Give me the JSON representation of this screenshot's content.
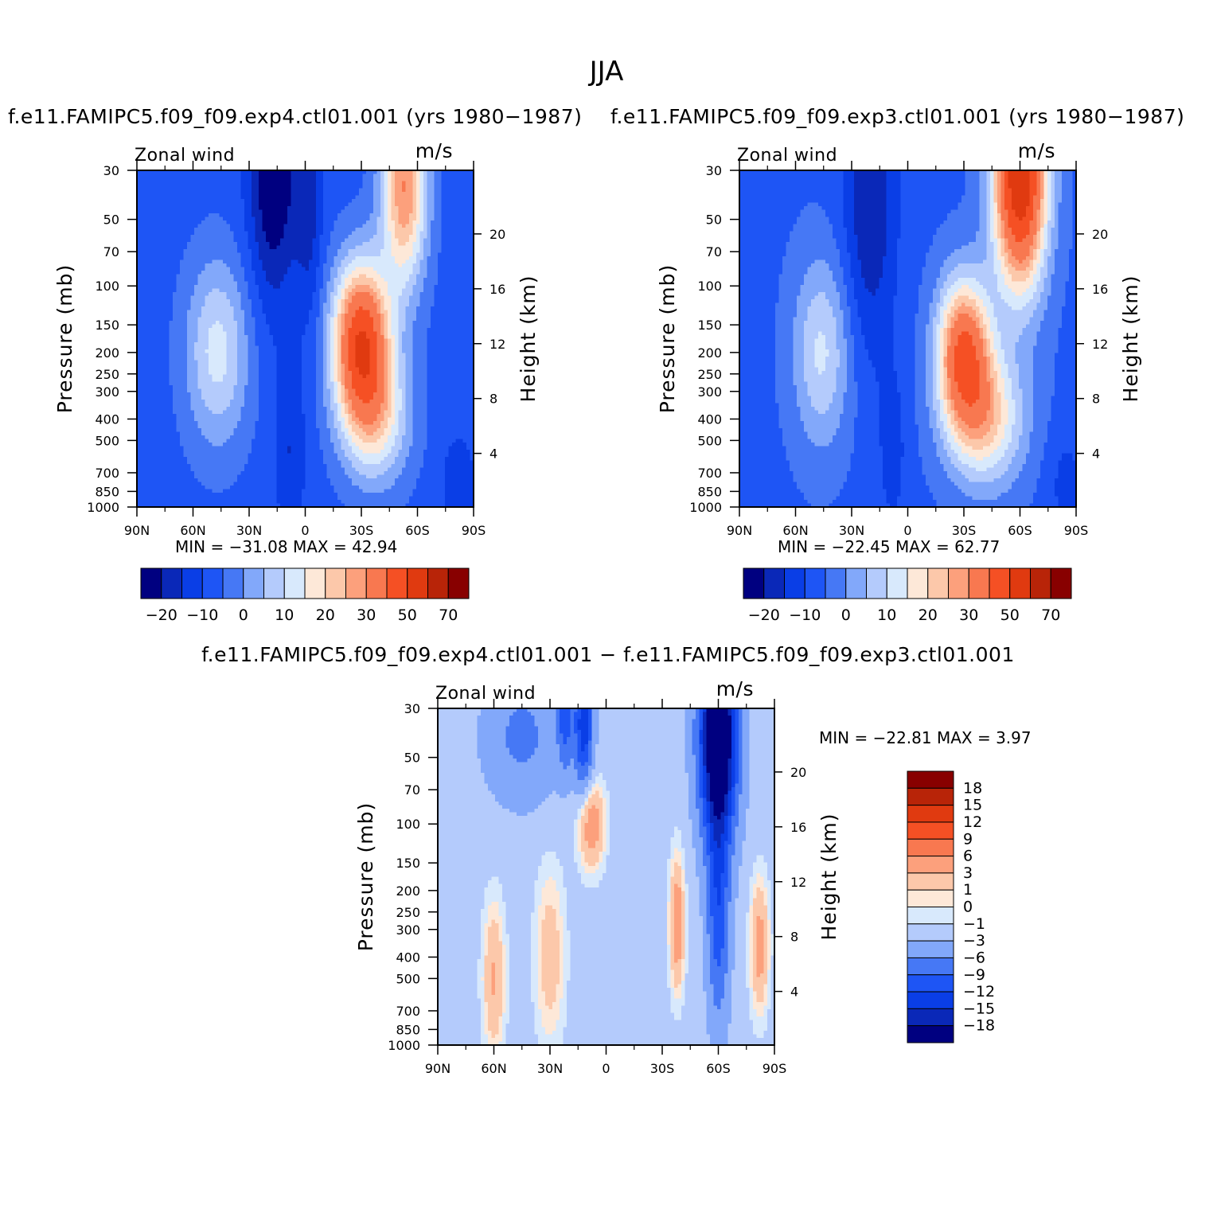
{
  "page_title": "JJA",
  "chart_data": [
    {
      "type": "heatmap",
      "title": "f.e11.FAMIPC5.f09_f09.exp4.ctl01.001 (yrs 1980−1987)",
      "left_label": "Zonal wind",
      "right_label": "m/s",
      "ylabel": "Pressure (mb)",
      "y2label": "Height (km)",
      "xlim": [
        90,
        -90
      ],
      "x_ticks": [
        "90N",
        "60N",
        "30N",
        "0",
        "30S",
        "60S",
        "90S"
      ],
      "x_tick_values": [
        90,
        60,
        30,
        0,
        -30,
        -60,
        -90
      ],
      "y_scale": "log",
      "ylim": [
        1000,
        30
      ],
      "y_ticks": [
        30,
        50,
        70,
        100,
        150,
        200,
        250,
        300,
        400,
        500,
        700,
        850,
        1000
      ],
      "y2_ticks": [
        4,
        8,
        12,
        16,
        20
      ],
      "stats_text": "MIN = −31.08   MAX =   42.94",
      "colorbar": {
        "orientation": "horizontal",
        "levels": [
          -25,
          -20,
          -15,
          -10,
          -5,
          0,
          5,
          10,
          15,
          20,
          25,
          30,
          40,
          50,
          60,
          70,
          80
        ],
        "tick_labels": [
          "−20",
          "−10",
          "0",
          "10",
          "20",
          "30",
          "50",
          "70"
        ],
        "colors": [
          "#000080",
          "#0a28b8",
          "#0a3ee6",
          "#1e55f5",
          "#4678f5",
          "#82a8fa",
          "#b4cbfc",
          "#d8e9fc",
          "#fde8d8",
          "#fcc8aa",
          "#fca07c",
          "#f87850",
          "#f55024",
          "#e03a10",
          "#b82408",
          "#880000"
        ]
      },
      "features": [
        {
          "lat": 17,
          "p": 40,
          "value": -28
        },
        {
          "lat": -2,
          "p": 40,
          "value": -15
        },
        {
          "lat": 45,
          "p": 200,
          "value": 18
        },
        {
          "lat": -30,
          "p": 200,
          "value": 42
        },
        {
          "lat": -53,
          "p": 40,
          "value": 30
        }
      ]
    },
    {
      "type": "heatmap",
      "title": "f.e11.FAMIPC5.f09_f09.exp3.ctl01.001 (yrs 1980−1987)",
      "left_label": "Zonal wind",
      "right_label": "m/s",
      "ylabel": "Pressure (mb)",
      "y2label": "Height (km)",
      "xlim": [
        90,
        -90
      ],
      "x_ticks": [
        "90N",
        "60N",
        "30N",
        "0",
        "30S",
        "60S",
        "90S"
      ],
      "x_tick_values": [
        90,
        60,
        30,
        0,
        -30,
        -60,
        -90
      ],
      "y_scale": "log",
      "ylim": [
        1000,
        30
      ],
      "y_ticks": [
        30,
        50,
        70,
        100,
        150,
        200,
        250,
        300,
        400,
        500,
        700,
        850,
        1000
      ],
      "y2_ticks": [
        4,
        8,
        12,
        16,
        20
      ],
      "stats_text": "MIN = −22.45   MAX =   62.77",
      "colorbar": {
        "orientation": "horizontal",
        "levels": [
          -25,
          -20,
          -15,
          -10,
          -5,
          0,
          5,
          10,
          15,
          20,
          25,
          30,
          40,
          50,
          60,
          70,
          80
        ],
        "tick_labels": [
          "−20",
          "−10",
          "0",
          "10",
          "20",
          "30",
          "50",
          "70"
        ],
        "colors": [
          "#000080",
          "#0a28b8",
          "#0a3ee6",
          "#1e55f5",
          "#4678f5",
          "#82a8fa",
          "#b4cbfc",
          "#d8e9fc",
          "#fde8d8",
          "#fcc8aa",
          "#fca07c",
          "#f87850",
          "#f55024",
          "#e03a10",
          "#b82408",
          "#880000"
        ]
      },
      "features": [
        {
          "lat": 20,
          "p": 40,
          "value": -20
        },
        {
          "lat": 45,
          "p": 200,
          "value": 16
        },
        {
          "lat": -30,
          "p": 200,
          "value": 38
        },
        {
          "lat": -60,
          "p": 40,
          "value": 58
        }
      ]
    },
    {
      "type": "heatmap",
      "title": "f.e11.FAMIPC5.f09_f09.exp4.ctl01.001 − f.e11.FAMIPC5.f09_f09.exp3.ctl01.001",
      "left_label": "Zonal wind",
      "right_label": "m/s",
      "ylabel": "Pressure (mb)",
      "y2label": "Height (km)",
      "xlim": [
        90,
        -90
      ],
      "x_ticks": [
        "90N",
        "60N",
        "30N",
        "0",
        "30S",
        "60S",
        "90S"
      ],
      "x_tick_values": [
        90,
        60,
        30,
        0,
        -30,
        -60,
        -90
      ],
      "y_scale": "log",
      "ylim": [
        1000,
        30
      ],
      "y_ticks": [
        30,
        50,
        70,
        100,
        150,
        200,
        250,
        300,
        400,
        500,
        700,
        850,
        1000
      ],
      "y2_ticks": [
        4,
        8,
        12,
        16,
        20
      ],
      "stats_text": "MIN = −22.81   MAX =    3.97",
      "colorbar": {
        "orientation": "vertical",
        "levels": [
          -21,
          -18,
          -15,
          -12,
          -9,
          -6,
          -3,
          -1,
          0,
          1,
          3,
          6,
          9,
          12,
          15,
          18,
          21
        ],
        "tick_labels": [
          "18",
          "15",
          "12",
          "9",
          "6",
          "3",
          "1",
          "0",
          "−1",
          "−3",
          "−6",
          "−9",
          "−12",
          "−15",
          "−18"
        ],
        "colors": [
          "#000080",
          "#0a28b8",
          "#0a3ee6",
          "#1e55f5",
          "#4678f5",
          "#82a8fa",
          "#b4cbfc",
          "#d8e9fc",
          "#fde8d8",
          "#fcc8aa",
          "#fca07c",
          "#f87850",
          "#f55024",
          "#e03a10",
          "#b82408",
          "#880000"
        ]
      },
      "features": [
        {
          "lat": -60,
          "p": 40,
          "value": -20
        },
        {
          "lat": 12,
          "p": 35,
          "value": -12
        },
        {
          "lat": -38,
          "p": 300,
          "value": 3
        },
        {
          "lat": 8,
          "p": 100,
          "value": 3
        }
      ]
    }
  ]
}
